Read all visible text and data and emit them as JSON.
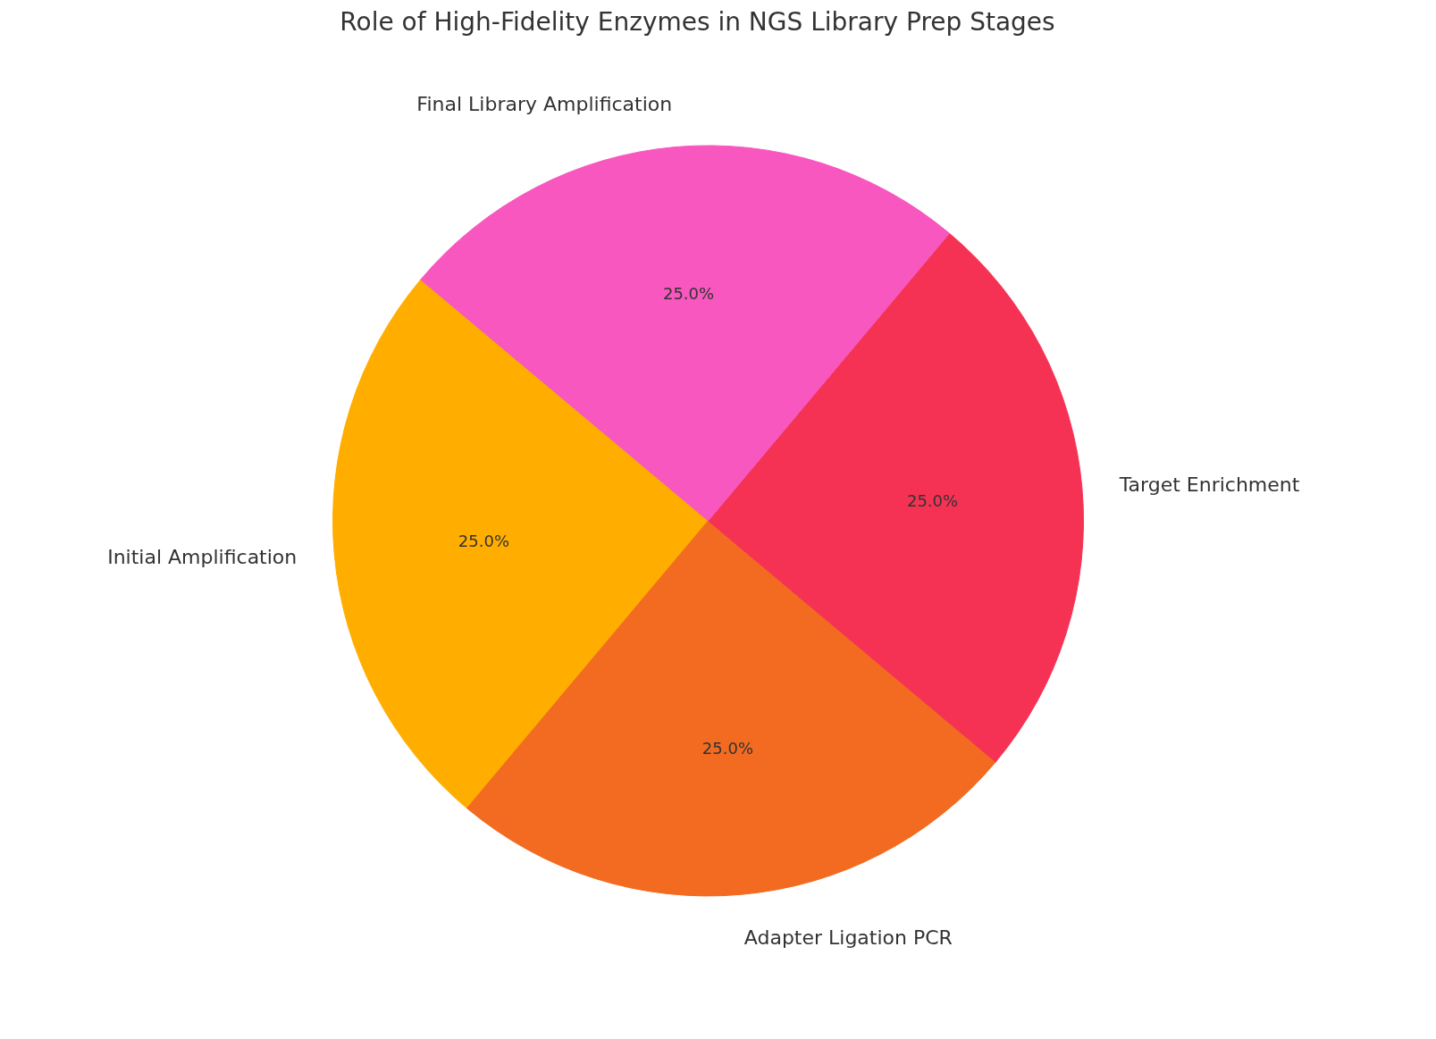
{
  "chart_data": {
    "type": "pie",
    "title": "Role of High-Fidelity Enzymes in NGS Library Prep Stages",
    "categories": [
      "Initial Amplification",
      "Adapter Ligation PCR",
      "Target Enrichment",
      "Final Library Amplification"
    ],
    "values": [
      25,
      25,
      25,
      25
    ],
    "colors": [
      "#ffae00",
      "#f26b21",
      "#f53254",
      "#f757be"
    ],
    "value_labels": [
      "25.0%",
      "25.0%",
      "25.0%",
      "25.0%"
    ]
  }
}
